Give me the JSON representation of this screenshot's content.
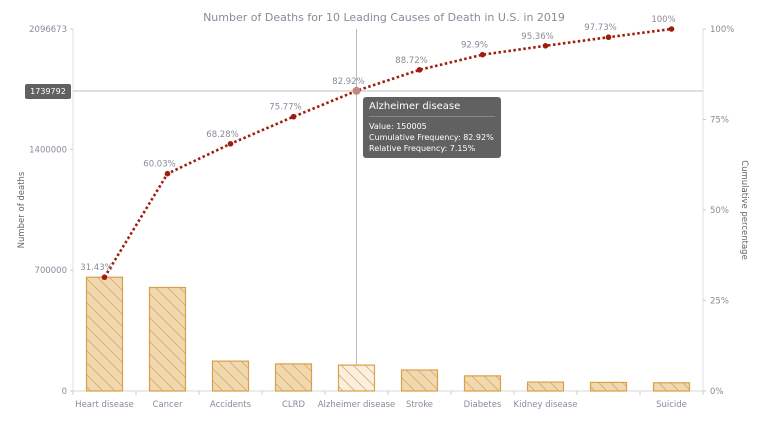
{
  "chart_data": {
    "type": "pareto",
    "title": "Number of Deaths for 10 Leading Causes of Death in U.S. in 2019",
    "ylabel": "Number of deaths",
    "y2label": "Cumulative percentage",
    "categories": [
      "Heart disease",
      "Cancer",
      "Accidents",
      "CLRD",
      "Alzheimer disease",
      "Stroke",
      "Diabetes",
      "Kidney disease",
      "",
      "Suicide"
    ],
    "values": [
      659041,
      599601,
      173040,
      156979,
      150005,
      121499,
      87647,
      51565,
      49783,
      47511
    ],
    "cumulative_percent": [
      31.43,
      60.03,
      68.28,
      75.77,
      82.92,
      88.72,
      92.9,
      95.36,
      97.73,
      100
    ],
    "cumulative_labels": [
      "31.43%",
      "60.03%",
      "68.28%",
      "75.77%",
      "82.92%",
      "88.72%",
      "92.9%",
      "95.36%",
      "97.73%",
      "100%"
    ],
    "ylim": [
      0,
      2096673
    ],
    "y_ticks": [
      "0",
      "700000",
      "1400000",
      "2096673"
    ],
    "y_tick_values": [
      0,
      700000,
      1400000,
      2096673
    ],
    "y2lim": [
      0,
      100
    ],
    "y2_ticks": [
      "0%",
      "25%",
      "50%",
      "75%",
      "100%"
    ],
    "y2_tick_values": [
      0,
      25,
      50,
      75,
      100
    ],
    "grid": false,
    "colors": {
      "bar_fill": "#f0d9b0",
      "bar_stroke": "#d9a04a",
      "hatch": "#d9a04a",
      "line": "#a01d0c",
      "text": "#8a8a9a",
      "hover_bar_fill": "#fbf0e0"
    }
  },
  "crosshair": {
    "y_value_label": "1739792",
    "category_index": 4
  },
  "tooltip": {
    "title": "Alzheimer disease",
    "value": "Value: 150005",
    "cumulative": "Cumulative Frequency: 82.92%",
    "relative": "Relative Frequency: 7.15%"
  }
}
